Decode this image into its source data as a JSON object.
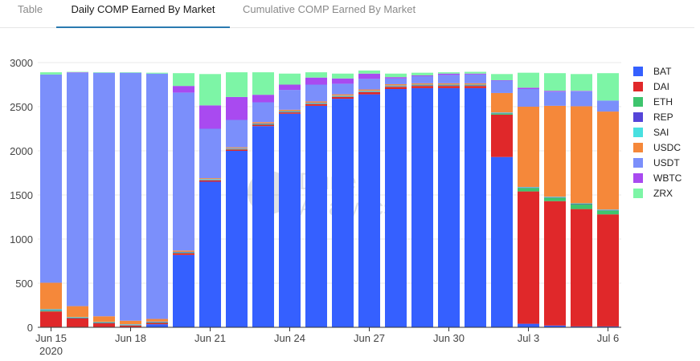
{
  "tabs": [
    {
      "label": "Table"
    },
    {
      "label": "Daily COMP Earned By Market"
    },
    {
      "label": "Cumulative COMP Earned By Market"
    }
  ],
  "watermark": {
    "line1": "Dune",
    "line2": "Analytics"
  },
  "chart_data": {
    "type": "bar",
    "stacked": true,
    "title": "Daily COMP Earned By Market",
    "xlabel": "",
    "ylabel": "",
    "ylim": [
      0,
      3000
    ],
    "yticks": [
      0,
      500,
      1000,
      1500,
      2000,
      2500,
      3000
    ],
    "grid": true,
    "legend_position": "right",
    "categories": [
      "Jun 15",
      "Jun 16",
      "Jun 17",
      "Jun 18",
      "Jun 19",
      "Jun 20",
      "Jun 21",
      "Jun 22",
      "Jun 23",
      "Jun 24",
      "Jun 25",
      "Jun 26",
      "Jun 27",
      "Jun 28",
      "Jun 29",
      "Jun 30",
      "Jul 1",
      "Jul 2",
      "Jul 3",
      "Jul 4",
      "Jul 5",
      "Jul 6"
    ],
    "xticks": [
      {
        "index": 0,
        "label": "Jun 15",
        "sublabel": "2020"
      },
      {
        "index": 3,
        "label": "Jun 18"
      },
      {
        "index": 6,
        "label": "Jun 21"
      },
      {
        "index": 9,
        "label": "Jun 24"
      },
      {
        "index": 12,
        "label": "Jun 27"
      },
      {
        "index": 15,
        "label": "Jun 30"
      },
      {
        "index": 18,
        "label": "Jul 3"
      },
      {
        "index": 21,
        "label": "Jul 6"
      }
    ],
    "series": [
      {
        "name": "BAT",
        "color": "#3560ff",
        "values": [
          5,
          5,
          5,
          5,
          35,
          820,
          1650,
          2000,
          2280,
          2420,
          2510,
          2590,
          2640,
          2700,
          2710,
          2710,
          2710,
          1930,
          40,
          20,
          10,
          10
        ]
      },
      {
        "name": "DAI",
        "color": "#e0282a",
        "values": [
          175,
          95,
          40,
          15,
          15,
          20,
          15,
          15,
          15,
          15,
          20,
          20,
          25,
          25,
          25,
          25,
          25,
          480,
          1500,
          1410,
          1330,
          1270
        ]
      },
      {
        "name": "ETH",
        "color": "#3ec46d",
        "values": [
          10,
          5,
          5,
          5,
          5,
          5,
          5,
          5,
          5,
          5,
          5,
          5,
          5,
          5,
          5,
          5,
          5,
          15,
          40,
          40,
          55,
          45
        ]
      },
      {
        "name": "REP",
        "color": "#5545d8",
        "values": [
          5,
          5,
          5,
          5,
          5,
          5,
          5,
          5,
          5,
          5,
          5,
          5,
          5,
          5,
          5,
          5,
          5,
          5,
          5,
          5,
          5,
          5
        ]
      },
      {
        "name": "SAI",
        "color": "#48e0e0",
        "values": [
          10,
          5,
          5,
          5,
          5,
          5,
          5,
          5,
          5,
          5,
          5,
          5,
          5,
          5,
          5,
          5,
          5,
          5,
          5,
          5,
          5,
          5
        ]
      },
      {
        "name": "USDC",
        "color": "#f5883a",
        "values": [
          300,
          125,
          65,
          40,
          30,
          15,
          10,
          10,
          15,
          15,
          15,
          15,
          15,
          15,
          15,
          15,
          15,
          220,
          910,
          1030,
          1100,
          1110
        ]
      },
      {
        "name": "USDT",
        "color": "#7b8ffb",
        "values": [
          2360,
          2645,
          2760,
          2810,
          2780,
          1790,
          560,
          310,
          225,
          225,
          190,
          120,
          120,
          65,
          80,
          95,
          100,
          140,
          200,
          160,
          170,
          125
        ]
      },
      {
        "name": "WBTC",
        "color": "#a94af0",
        "values": [
          0,
          5,
          0,
          0,
          0,
          75,
          265,
          260,
          85,
          60,
          80,
          60,
          60,
          15,
          10,
          15,
          10,
          5,
          15,
          10,
          5,
          0
        ]
      },
      {
        "name": "ZRX",
        "color": "#7df5a6",
        "values": [
          25,
          5,
          5,
          5,
          10,
          145,
          355,
          280,
          255,
          125,
          60,
          55,
          35,
          40,
          30,
          15,
          20,
          70,
          170,
          200,
          190,
          310
        ]
      }
    ]
  }
}
